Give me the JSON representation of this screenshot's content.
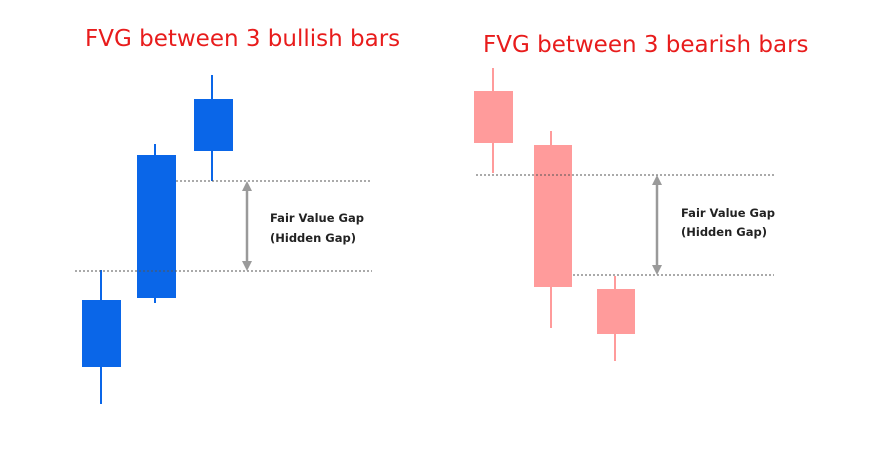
{
  "panels": [
    {
      "title": "FVG between 3 bullish bars",
      "annotation": [
        "Fair Value Gap",
        "(Hidden Gap)"
      ]
    },
    {
      "title": "FVG between 3 bearish bars",
      "annotation": [
        "Fair Value Gap",
        "(Hidden Gap)"
      ]
    }
  ]
}
